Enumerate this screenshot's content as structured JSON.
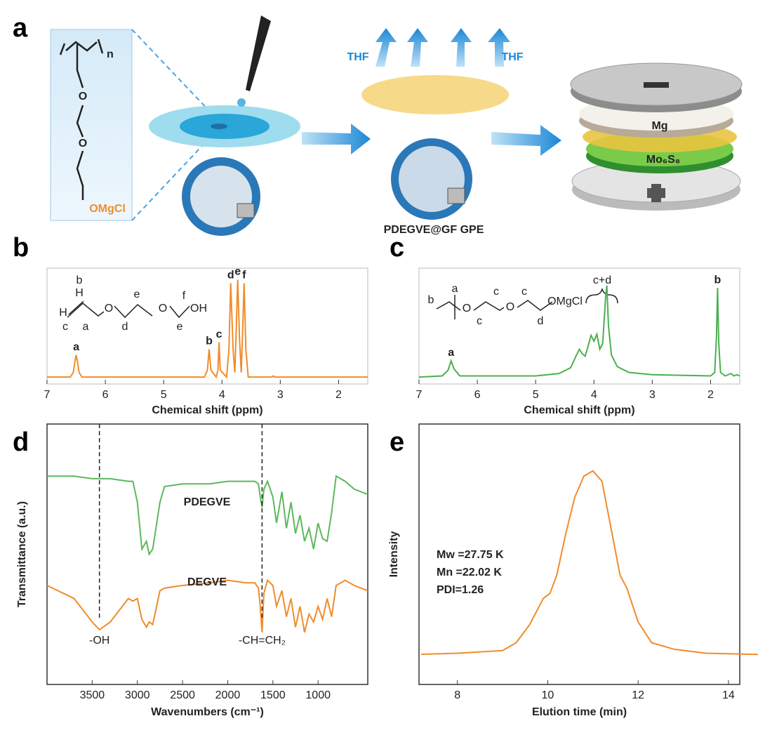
{
  "panel_labels": [
    "a",
    "b",
    "c",
    "d",
    "e"
  ],
  "scheme": {
    "polymer_n": "n",
    "atoms": [
      "O",
      "O"
    ],
    "end_group": "OMgCl",
    "solvent_left": "THF",
    "solvent_right": "THF",
    "membrane": "PDEGVE@GF GPE",
    "anode": "Mg",
    "cathode": "Mo₆S₈"
  },
  "chart_data": [
    {
      "type": "line",
      "xlabel": "Chemical shift (ppm)",
      "xlim": [
        7,
        1.5
      ],
      "xticks": [
        7,
        6,
        5,
        4,
        3,
        2
      ],
      "ylim": [
        0,
        1
      ],
      "x": [
        7,
        6.6,
        6.55,
        6.52,
        6.5,
        6.48,
        6.45,
        6.4,
        4.3,
        4.25,
        4.22,
        4.19,
        4.1,
        4.07,
        4.05,
        4.03,
        3.92,
        3.88,
        3.85,
        3.81,
        3.78,
        3.76,
        3.73,
        3.7,
        3.67,
        3.65,
        3.62,
        3.59,
        3.55,
        3.15,
        3.12,
        3.1,
        1.5
      ],
      "series": [
        {
          "color": "#f08c2c",
          "values": [
            0.06,
            0.06,
            0.1,
            0.2,
            0.25,
            0.2,
            0.1,
            0.06,
            0.06,
            0.12,
            0.3,
            0.12,
            0.06,
            0.12,
            0.36,
            0.12,
            0.06,
            0.3,
            0.87,
            0.3,
            0.1,
            0.4,
            0.9,
            0.4,
            0.1,
            0.4,
            0.87,
            0.3,
            0.06,
            0.06,
            0.07,
            0.06,
            0.06
          ]
        }
      ],
      "peak_labels": [
        {
          "label": "a",
          "x": 6.5
        },
        {
          "label": "b",
          "x": 4.22
        },
        {
          "label": "c",
          "x": 4.05
        },
        {
          "label": "d",
          "x": 3.85
        },
        {
          "label": "e",
          "x": 3.73
        },
        {
          "label": "f",
          "x": 3.62
        }
      ],
      "inset_labels": [
        "b",
        "H",
        "H",
        "c",
        "a",
        "O",
        "e",
        "d",
        "O",
        "f",
        "e",
        "OH"
      ]
    },
    {
      "type": "line",
      "xlabel": "Chemical shift (ppm)",
      "xlim": [
        7,
        1.5
      ],
      "xticks": [
        7,
        6,
        5,
        4,
        3,
        2
      ],
      "ylim": [
        0,
        1
      ],
      "x": [
        7,
        6.6,
        6.5,
        6.45,
        6.4,
        6.3,
        5,
        4.6,
        4.4,
        4.3,
        4.25,
        4.2,
        4.15,
        4.1,
        4.05,
        4.0,
        3.95,
        3.9,
        3.85,
        3.8,
        3.78,
        3.75,
        3.7,
        3.6,
        3.4,
        3.0,
        2.0,
        1.93,
        1.9,
        1.88,
        1.86,
        1.83,
        1.75,
        1.65,
        1.6,
        1.55,
        1.5
      ],
      "series": [
        {
          "color": "#4caf50",
          "values": [
            0.06,
            0.07,
            0.12,
            0.2,
            0.13,
            0.07,
            0.07,
            0.09,
            0.14,
            0.25,
            0.3,
            0.26,
            0.24,
            0.33,
            0.42,
            0.37,
            0.43,
            0.3,
            0.35,
            0.75,
            0.85,
            0.5,
            0.25,
            0.15,
            0.1,
            0.08,
            0.07,
            0.1,
            0.4,
            0.83,
            0.35,
            0.1,
            0.07,
            0.09,
            0.07,
            0.08,
            0.07
          ]
        }
      ],
      "peak_labels": [
        {
          "label": "a",
          "x": 6.45
        },
        {
          "label": "b",
          "x": 1.88
        }
      ],
      "inset_labels": [
        "b",
        "a",
        "O",
        "c",
        "c",
        "O",
        "c",
        "d",
        "OMgCl",
        "c+d"
      ]
    },
    {
      "type": "line",
      "xlabel": "Wavenumbers (cm⁻¹)",
      "ylabel": "Transmittance (a.u.)",
      "xlim": [
        4000,
        450
      ],
      "xticks": [
        3500,
        3000,
        2500,
        2000,
        1500,
        1000
      ],
      "ylim": [
        0,
        1
      ],
      "x": [
        4000,
        3700,
        3500,
        3420,
        3300,
        3100,
        3050,
        3000,
        2950,
        2900,
        2870,
        2830,
        2750,
        2700,
        2500,
        2200,
        2000,
        1800,
        1700,
        1660,
        1640,
        1620,
        1600,
        1560,
        1500,
        1460,
        1400,
        1350,
        1300,
        1250,
        1200,
        1150,
        1100,
        1050,
        1000,
        950,
        900,
        850,
        800,
        700,
        600,
        450
      ],
      "series": [
        {
          "name": "PDEGVE",
          "color": "#5cb85c",
          "values": [
            0.8,
            0.8,
            0.79,
            0.79,
            0.79,
            0.78,
            0.78,
            0.7,
            0.52,
            0.55,
            0.5,
            0.52,
            0.7,
            0.76,
            0.77,
            0.77,
            0.78,
            0.78,
            0.78,
            0.77,
            0.72,
            0.68,
            0.75,
            0.78,
            0.72,
            0.62,
            0.74,
            0.6,
            0.7,
            0.58,
            0.65,
            0.55,
            0.6,
            0.52,
            0.62,
            0.56,
            0.55,
            0.66,
            0.8,
            0.78,
            0.75,
            0.73
          ]
        },
        {
          "name": "DEGVE",
          "color": "#f08c2c",
          "values": [
            0.38,
            0.33,
            0.24,
            0.21,
            0.24,
            0.33,
            0.32,
            0.33,
            0.25,
            0.22,
            0.24,
            0.23,
            0.36,
            0.37,
            0.38,
            0.39,
            0.4,
            0.39,
            0.39,
            0.37,
            0.3,
            0.2,
            0.35,
            0.4,
            0.38,
            0.3,
            0.36,
            0.26,
            0.33,
            0.22,
            0.3,
            0.2,
            0.27,
            0.24,
            0.3,
            0.25,
            0.33,
            0.26,
            0.38,
            0.4,
            0.38,
            0.36
          ]
        }
      ],
      "markers": [
        {
          "x": 3420,
          "label": "-OH"
        },
        {
          "x": 1620,
          "label": "-CH=CH₂"
        }
      ]
    },
    {
      "type": "line",
      "xlabel": "Elution time (min)",
      "ylabel": "Intensity",
      "xlim": [
        7.15,
        14.25
      ],
      "xticks": [
        8,
        10,
        12,
        14
      ],
      "ylim": [
        0,
        1
      ],
      "x": [
        7.2,
        8,
        9,
        9.3,
        9.6,
        9.9,
        10.05,
        10.2,
        10.4,
        10.6,
        10.8,
        11.0,
        11.2,
        11.4,
        11.6,
        11.75,
        12.0,
        12.3,
        12.8,
        13.5,
        14.7
      ],
      "series": [
        {
          "color": "#f08c2c",
          "values": [
            0.116,
            0.12,
            0.13,
            0.16,
            0.23,
            0.33,
            0.35,
            0.42,
            0.58,
            0.72,
            0.8,
            0.82,
            0.78,
            0.6,
            0.42,
            0.37,
            0.24,
            0.16,
            0.135,
            0.12,
            0.115
          ]
        }
      ],
      "annotations": [
        "Mw =27.75 K",
        "Mn =22.02 K",
        "PDI=1.26"
      ]
    }
  ]
}
